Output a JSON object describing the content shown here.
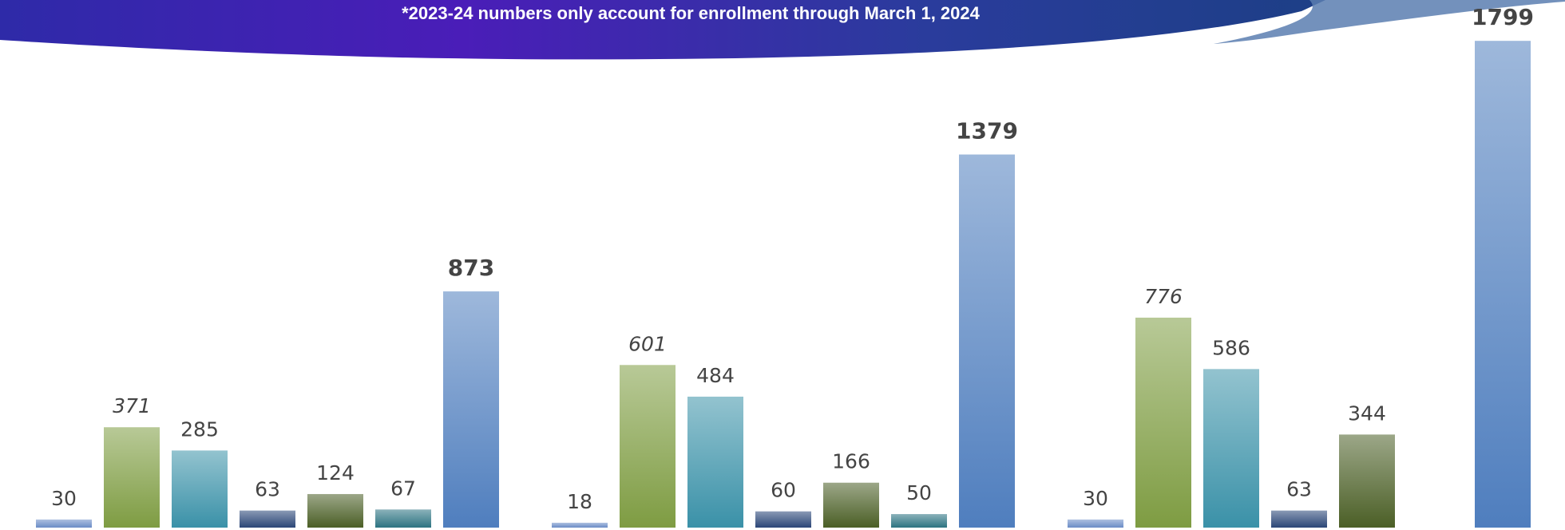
{
  "chart_data": {
    "type": "bar",
    "subtitle": "*2023-24 numbers only account for enrollment through March 1, 2024",
    "ylim": [
      0,
      1950
    ],
    "series": [
      {
        "color": "#6a8cc6",
        "values": [
          30,
          18,
          30
        ]
      },
      {
        "color": "#7e9c42",
        "values": [
          371,
          601,
          776
        ],
        "label_style": "italic"
      },
      {
        "color": "#3a91a8",
        "values": [
          285,
          484,
          586
        ]
      },
      {
        "color": "#2b4677",
        "values": [
          63,
          60,
          63
        ]
      },
      {
        "color": "#4b5f26",
        "values": [
          124,
          166,
          344
        ]
      },
      {
        "color": "#2c7381",
        "values": [
          67,
          50,
          null
        ]
      },
      {
        "color": "#4f7ebe",
        "values": [
          873,
          1379,
          1799
        ],
        "label_style": "bold"
      }
    ]
  }
}
